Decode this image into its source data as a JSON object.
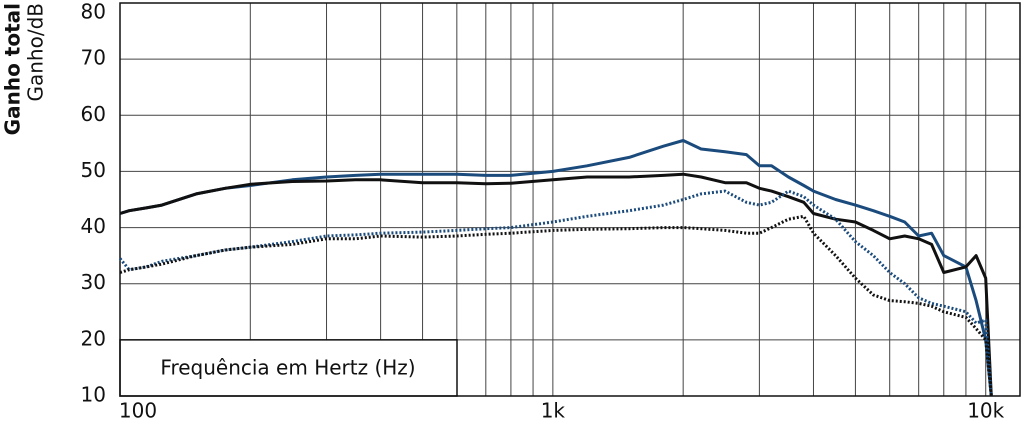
{
  "chart_data": {
    "type": "line",
    "y_title": "Ganho total",
    "y_label": "Ganho/dB",
    "x_label": "Frequência em Hertz (Hz)",
    "x_log": true,
    "grid": true,
    "xlim": [
      100,
      12000
    ],
    "ylim": [
      10,
      80
    ],
    "yticks": [
      10,
      20,
      30,
      40,
      50,
      60,
      70,
      80
    ],
    "xticks": [
      100,
      {
        "value": 1000,
        "label": "1k"
      },
      {
        "value": 10000,
        "label": "10k"
      }
    ],
    "xminor_ticks": [
      200,
      300,
      400,
      500,
      600,
      700,
      800,
      900,
      2000,
      3000,
      4000,
      5000,
      6000,
      7000,
      8000,
      9000
    ],
    "x": [
      100,
      105,
      115,
      125,
      150,
      175,
      200,
      250,
      300,
      350,
      400,
      500,
      600,
      700,
      800,
      1000,
      1200,
      1500,
      1800,
      2000,
      2200,
      2500,
      2800,
      3000,
      3200,
      3500,
      3800,
      4000,
      4500,
      5000,
      5500,
      6000,
      6500,
      7000,
      7500,
      8000,
      9000,
      9500,
      10000,
      10300
    ],
    "series": [
      {
        "color": "#1b4b7c",
        "style": "solid",
        "values": [
          42.5,
          43,
          43.5,
          44,
          46,
          47,
          47.5,
          48.5,
          49,
          49.3,
          49.5,
          49.5,
          49.5,
          49.3,
          49.3,
          50,
          51,
          52.5,
          54.5,
          55.5,
          54,
          53.5,
          53,
          51,
          51,
          49,
          47.5,
          46.5,
          45,
          44,
          43,
          42,
          41,
          38.5,
          39,
          35,
          33,
          27,
          20,
          10
        ]
      },
      {
        "color": "#111111",
        "style": "solid",
        "values": [
          42.5,
          43,
          43.5,
          44,
          46,
          47,
          47.7,
          48.2,
          48.3,
          48.5,
          48.5,
          48,
          48,
          47.8,
          47.9,
          48.5,
          49,
          49,
          49.3,
          49.5,
          49,
          48,
          48,
          47,
          46.5,
          45.5,
          44.5,
          42.5,
          41.5,
          41,
          39.5,
          38,
          38.5,
          38,
          37,
          32,
          33,
          35,
          31,
          10
        ]
      },
      {
        "color": "#1b4b7c",
        "style": "dotted",
        "values": [
          34.5,
          32.5,
          33,
          34,
          35,
          36,
          36.5,
          37.5,
          38.5,
          38.7,
          39,
          39.2,
          39.5,
          39.8,
          40,
          41,
          42,
          43,
          44,
          45,
          46,
          46.5,
          44.5,
          44,
          44.5,
          46.5,
          45.5,
          44,
          41.5,
          37.5,
          35,
          32,
          30,
          27.5,
          26.5,
          26,
          25,
          23,
          23.5,
          10
        ]
      },
      {
        "color": "#111111",
        "style": "dotted",
        "values": [
          32,
          32.5,
          33,
          33.5,
          35,
          36,
          36.5,
          37,
          38,
          38,
          38.5,
          38.3,
          38.5,
          38.8,
          39,
          39.5,
          39.7,
          39.8,
          40,
          40,
          39.8,
          39.5,
          39,
          39,
          40,
          41.5,
          42,
          39,
          35,
          31,
          28,
          27,
          26.8,
          26.5,
          26,
          25,
          24,
          22,
          20,
          10
        ]
      }
    ]
  }
}
